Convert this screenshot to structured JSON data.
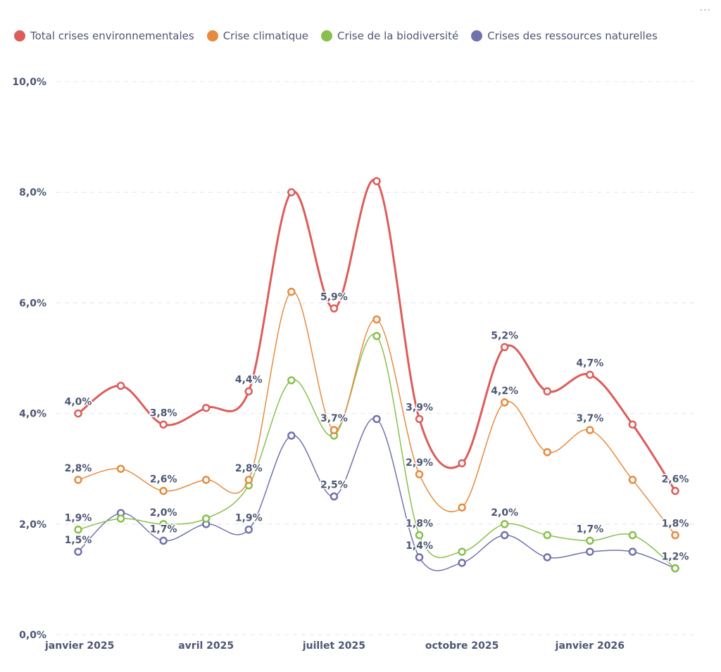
{
  "menu": {
    "icon": "more-horizontal-icon",
    "label": "···"
  },
  "chart_data": {
    "type": "line",
    "title": "",
    "xlabel": "",
    "ylabel": "",
    "ylim": [
      0,
      10
    ],
    "yticks": [
      "0,0%",
      "2,0%",
      "4,0%",
      "6,0%",
      "8,0%",
      "10,0%"
    ],
    "ytick_values": [
      0,
      2,
      4,
      6,
      8,
      10
    ],
    "grid": true,
    "legend_position": "top-left",
    "x": [
      "janvier 2025",
      "février 2025",
      "mars 2025",
      "avril 2025",
      "mai 2025",
      "juin 2025",
      "juillet 2025",
      "août 2025",
      "septembre 2025",
      "octobre 2025",
      "novembre 2025",
      "décembre 2025",
      "janvier 2026",
      "février 2026",
      "mars 2026"
    ],
    "xtick_labels": [
      {
        "index": 0,
        "label": "janvier 2025"
      },
      {
        "index": 3,
        "label": "avril 2025"
      },
      {
        "index": 6,
        "label": "juillet 2025"
      },
      {
        "index": 9,
        "label": "octobre 2025"
      },
      {
        "index": 12,
        "label": "janvier 2026"
      }
    ],
    "series": [
      {
        "name": "Total crises environnementales",
        "color": "#dc5d5b",
        "stroke": 3,
        "values": [
          4.0,
          4.5,
          3.8,
          4.1,
          4.4,
          8.0,
          5.9,
          8.2,
          3.9,
          3.1,
          5.2,
          4.4,
          4.7,
          3.8,
          2.6
        ],
        "labels": [
          {
            "index": 0,
            "text": "4,0%"
          },
          {
            "index": 2,
            "text": "3,8%"
          },
          {
            "index": 4,
            "text": "4,4%"
          },
          {
            "index": 6,
            "text": "5,9%"
          },
          {
            "index": 8,
            "text": "3,9%"
          },
          {
            "index": 10,
            "text": "5,2%"
          },
          {
            "index": 12,
            "text": "4,7%"
          },
          {
            "index": 14,
            "text": "2,6%"
          }
        ]
      },
      {
        "name": "Crise climatique",
        "color": "#e58b3f",
        "stroke": 1.5,
        "values": [
          2.8,
          3.0,
          2.6,
          2.8,
          2.8,
          6.2,
          3.7,
          5.7,
          2.9,
          2.3,
          4.2,
          3.3,
          3.7,
          2.8,
          1.8
        ],
        "labels": [
          {
            "index": 0,
            "text": "2,8%"
          },
          {
            "index": 2,
            "text": "2,6%"
          },
          {
            "index": 4,
            "text": "2,8%"
          },
          {
            "index": 6,
            "text": "3,7%"
          },
          {
            "index": 8,
            "text": "2,9%"
          },
          {
            "index": 10,
            "text": "4,2%"
          },
          {
            "index": 12,
            "text": "3,7%"
          },
          {
            "index": 14,
            "text": "1,8%"
          }
        ]
      },
      {
        "name": "Crise de la biodiversité",
        "color": "#88bf4d",
        "stroke": 1.5,
        "values": [
          1.9,
          2.1,
          2.0,
          2.1,
          2.7,
          4.6,
          3.6,
          5.4,
          1.8,
          1.5,
          2.0,
          1.8,
          1.7,
          1.8,
          1.2
        ],
        "labels": [
          {
            "index": 0,
            "text": "1,9%"
          },
          {
            "index": 2,
            "text": "2,0%"
          },
          {
            "index": 8,
            "text": "1,8%"
          },
          {
            "index": 10,
            "text": "2,0%"
          },
          {
            "index": 12,
            "text": "1,7%"
          },
          {
            "index": 14,
            "text": "1,2%"
          }
        ]
      },
      {
        "name": "Crises des ressources naturelles",
        "color": "#7172ad",
        "stroke": 1.5,
        "values": [
          1.5,
          2.2,
          1.7,
          2.0,
          1.9,
          3.6,
          2.5,
          3.9,
          1.4,
          1.3,
          1.8,
          1.4,
          1.5,
          1.5,
          1.2
        ],
        "labels": [
          {
            "index": 0,
            "text": "1,5%"
          },
          {
            "index": 2,
            "text": "1,7%"
          },
          {
            "index": 4,
            "text": "1,9%"
          },
          {
            "index": 6,
            "text": "2,5%"
          },
          {
            "index": 8,
            "text": "1,4%"
          }
        ]
      }
    ]
  }
}
